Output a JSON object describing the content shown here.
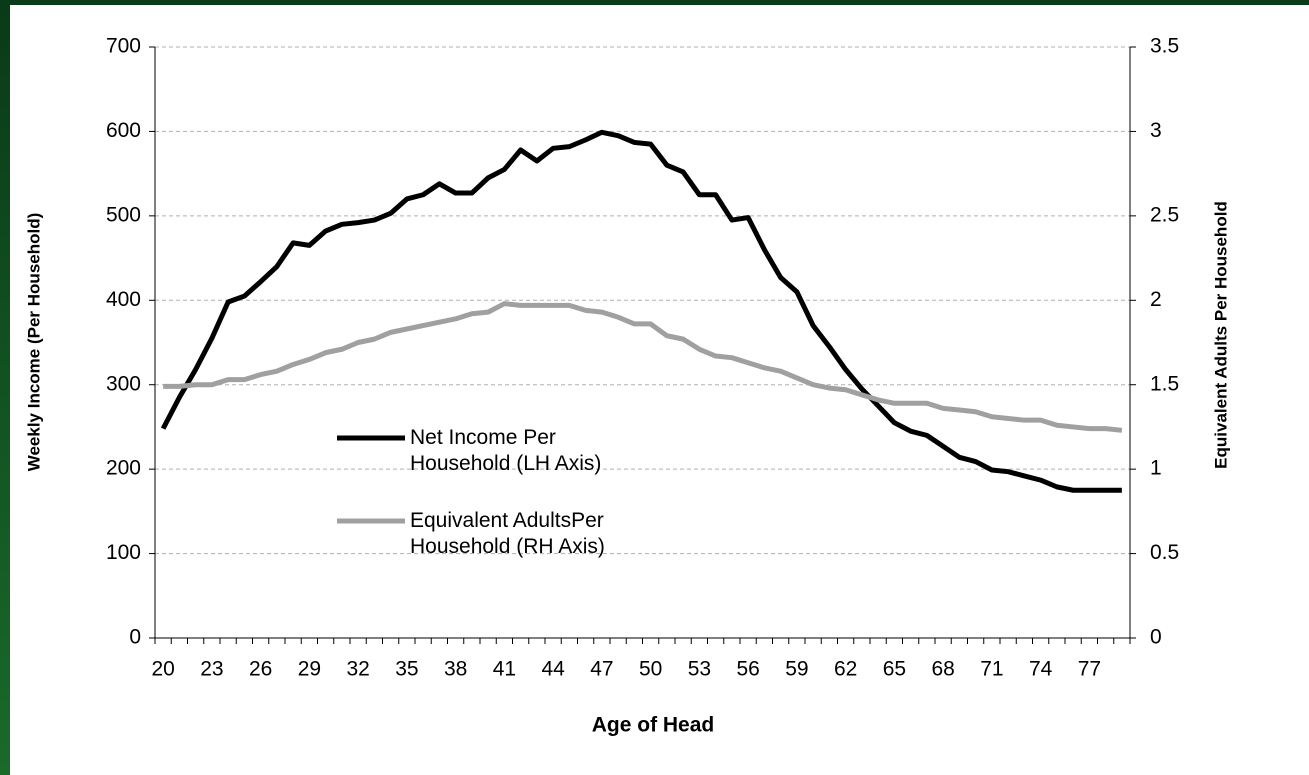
{
  "chart_data": {
    "type": "line",
    "x_label": "Age of Head",
    "y_label": "Weekly  Income (Per Household)",
    "y2_label": "Equivalent Adults Per Household",
    "categories": [
      20,
      null,
      null,
      23,
      null,
      null,
      26,
      null,
      null,
      29,
      null,
      null,
      32,
      null,
      null,
      35,
      null,
      null,
      38,
      null,
      null,
      41,
      null,
      null,
      44,
      null,
      null,
      47,
      null,
      null,
      50,
      null,
      null,
      53,
      null,
      null,
      56,
      null,
      null,
      59,
      null,
      null,
      62,
      null,
      null,
      65,
      null,
      null,
      68,
      null,
      null,
      71,
      null,
      null,
      74,
      null,
      null,
      77,
      null,
      null
    ],
    "series": [
      {
        "name": "Net Income Per Household (LH Axis)",
        "color": "#000000",
        "axis": "y",
        "values": [
          248,
          285,
          318,
          355,
          398,
          405,
          422,
          440,
          468,
          465,
          482,
          490,
          492,
          495,
          503,
          520,
          525,
          538,
          527,
          527,
          545,
          555,
          578,
          565,
          580,
          582,
          590,
          599,
          595,
          587,
          585,
          560,
          552,
          525,
          525,
          495,
          498,
          460,
          427,
          410,
          370,
          345,
          318,
          295,
          275,
          255,
          245,
          240,
          227,
          214,
          209,
          199,
          197,
          192,
          187,
          179,
          175,
          175,
          175,
          175
        ]
      },
      {
        "name": "Equivalent AdultsPer Household (RH Axis)",
        "color": "#a0a0a0",
        "axis": "y2",
        "values": [
          1.49,
          1.49,
          1.5,
          1.5,
          1.53,
          1.53,
          1.56,
          1.58,
          1.62,
          1.65,
          1.69,
          1.71,
          1.75,
          1.77,
          1.81,
          1.83,
          1.85,
          1.87,
          1.89,
          1.92,
          1.93,
          1.98,
          1.97,
          1.97,
          1.97,
          1.97,
          1.94,
          1.93,
          1.9,
          1.86,
          1.86,
          1.79,
          1.77,
          1.71,
          1.67,
          1.66,
          1.63,
          1.6,
          1.58,
          1.54,
          1.5,
          1.48,
          1.47,
          1.44,
          1.41,
          1.39,
          1.39,
          1.39,
          1.36,
          1.35,
          1.34,
          1.31,
          1.3,
          1.29,
          1.29,
          1.26,
          1.25,
          1.24,
          1.24,
          1.23
        ]
      }
    ],
    "ylim": [
      0,
      700
    ],
    "yticks": [
      0,
      100,
      200,
      300,
      400,
      500,
      600,
      700
    ],
    "y2lim": [
      0,
      3.5
    ],
    "y2ticks": [
      0,
      0.5,
      1,
      1.5,
      2,
      2.5,
      3,
      3.5
    ],
    "grid": true
  }
}
